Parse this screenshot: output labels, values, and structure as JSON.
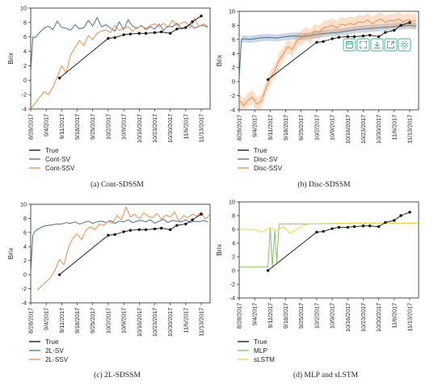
{
  "colors": {
    "true": "#111111",
    "sv": "#4a6f94",
    "ssv": "#ed8b47",
    "mlp": "#86c06a",
    "slstm": "#f5d24a",
    "toolbar": "#3fae8a"
  },
  "toolbar": {
    "icons": [
      "save-icon",
      "expand-icon",
      "download-icon",
      "export-icon",
      "settings-icon"
    ]
  },
  "chart_data": [
    {
      "type": "line",
      "caption": "(a) Cont-SDSSM",
      "ylabel": "Brix",
      "ylim": [
        -4,
        10
      ],
      "yticks": [
        -4,
        -2,
        0,
        2,
        4,
        6,
        8,
        10
      ],
      "x_ticks": [
        "8/28/2017",
        "9/4/2017",
        "9/11/2017",
        "9/18/2017",
        "9/25/2017",
        "10/2/2017",
        "10/9/2017",
        "10/16/2017",
        "10/23/2017",
        "10/30/2017",
        "11/6/2017",
        "11/13/2017"
      ],
      "x_range": [
        "8/28/2017",
        "11/17/2017"
      ],
      "series": [
        {
          "name": "True",
          "style": "marker",
          "x": [
            "9/10/2017",
            "10/2/2017",
            "10/5/2017",
            "10/9/2017",
            "10/12/2017",
            "10/16/2017",
            "10/19/2017",
            "10/23/2017",
            "10/26/2017",
            "10/30/2017",
            "11/2/2017",
            "11/6/2017",
            "11/9/2017",
            "11/13/2017"
          ],
          "y": [
            0.3,
            5.8,
            5.9,
            6.3,
            6.4,
            6.5,
            6.5,
            6.6,
            6.7,
            6.5,
            7.1,
            7.3,
            8.1,
            8.9
          ]
        },
        {
          "name": "Cont-SV",
          "style": "line",
          "x": [
            "8/28/2017",
            "8/29/2017",
            "8/30/2017",
            "9/1/2017",
            "9/3/2017",
            "9/5/2017",
            "9/7/2017",
            "9/9/2017",
            "9/11/2017",
            "9/13/2017",
            "9/15/2017",
            "9/17/2017",
            "9/19/2017",
            "9/21/2017",
            "9/23/2017",
            "9/25/2017",
            "9/27/2017",
            "9/29/2017",
            "10/1/2017",
            "10/3/2017",
            "10/5/2017",
            "10/7/2017",
            "10/9/2017",
            "10/11/2017",
            "10/13/2017",
            "10/15/2017",
            "10/17/2017",
            "10/19/2017",
            "10/21/2017",
            "10/23/2017",
            "10/25/2017",
            "10/27/2017",
            "10/29/2017",
            "10/31/2017",
            "11/2/2017",
            "11/4/2017",
            "11/6/2017",
            "11/8/2017",
            "11/10/2017",
            "11/12/2017",
            "11/14/2017",
            "11/16/2017"
          ],
          "y": [
            1.2,
            6.0,
            5.9,
            6.6,
            7.2,
            7.5,
            7.0,
            8.2,
            7.3,
            7.2,
            6.9,
            7.7,
            7.1,
            7.3,
            8.3,
            7.5,
            8.7,
            7.4,
            7.7,
            7.2,
            6.8,
            8.1,
            7.0,
            8.4,
            7.5,
            7.2,
            7.6,
            7.0,
            7.4,
            7.1,
            7.8,
            6.9,
            7.5,
            7.4,
            7.9,
            7.1,
            7.3,
            7.7,
            7.2,
            7.5,
            7.6,
            7.3
          ]
        },
        {
          "name": "Cont-SSV",
          "style": "line",
          "x": [
            "8/28/2017",
            "8/30/2017",
            "9/1/2017",
            "9/3/2017",
            "9/5/2017",
            "9/7/2017",
            "9/9/2017",
            "9/11/2017",
            "9/13/2017",
            "9/15/2017",
            "9/17/2017",
            "9/19/2017",
            "9/21/2017",
            "9/23/2017",
            "9/25/2017",
            "9/27/2017",
            "9/29/2017",
            "10/1/2017",
            "10/3/2017",
            "10/5/2017",
            "10/7/2017",
            "10/9/2017",
            "10/11/2017",
            "10/13/2017",
            "10/15/2017",
            "10/17/2017",
            "10/19/2017",
            "10/21/2017",
            "10/23/2017",
            "10/25/2017",
            "10/27/2017",
            "10/29/2017",
            "10/31/2017",
            "11/2/2017",
            "11/4/2017",
            "11/6/2017",
            "11/8/2017",
            "11/10/2017",
            "11/12/2017",
            "11/14/2017",
            "11/16/2017"
          ],
          "y": [
            -4.0,
            -3.2,
            -2.4,
            -1.6,
            -2.0,
            -1.0,
            0.5,
            2.0,
            1.0,
            3.5,
            4.5,
            5.5,
            4.8,
            6.2,
            5.6,
            6.5,
            6.8,
            7.0,
            6.6,
            7.6,
            6.9,
            7.2,
            7.4,
            6.8,
            7.3,
            7.5,
            7.2,
            7.6,
            7.8,
            7.4,
            7.9,
            7.3,
            8.3,
            7.6,
            7.9,
            8.1,
            7.2,
            8.6,
            7.4,
            7.8,
            7.5
          ]
        }
      ],
      "legend": {
        "placement": "below",
        "entries": [
          "True",
          "Cont-SV",
          "Cont-SSV"
        ]
      },
      "grid": false
    },
    {
      "type": "line",
      "caption": "(b) Disc-SDSSM",
      "ylabel": "Brix",
      "ylim": [
        -4,
        10
      ],
      "yticks": [
        -4,
        -2,
        0,
        2,
        4,
        6,
        8,
        10
      ],
      "x_ticks": [
        "8/28/2017",
        "9/4/2017",
        "9/11/2017",
        "9/18/2017",
        "9/25/2017",
        "10/2/2017",
        "10/9/2017",
        "10/16/2017",
        "10/23/2017",
        "10/30/2017",
        "11/6/2017",
        "11/13/2017"
      ],
      "x_range": [
        "8/28/2017",
        "11/17/2017"
      ],
      "series": [
        {
          "name": "True",
          "style": "marker",
          "x": [
            "9/10/2017",
            "10/2/2017",
            "10/5/2017",
            "10/9/2017",
            "10/12/2017",
            "10/16/2017",
            "10/19/2017",
            "10/23/2017",
            "10/26/2017",
            "10/30/2017",
            "11/2/2017",
            "11/6/2017",
            "11/9/2017",
            "11/13/2017"
          ],
          "y": [
            0.3,
            5.6,
            5.7,
            6.1,
            6.3,
            6.4,
            6.4,
            6.5,
            6.6,
            6.4,
            7.0,
            7.3,
            8.0,
            8.4
          ]
        },
        {
          "name": "Disc-SV",
          "style": "band",
          "x": [
            "8/28/2017",
            "8/29/2017",
            "8/30/2017",
            "9/2/2017",
            "9/6/2017",
            "9/10/2017",
            "9/14/2017",
            "9/18/2017",
            "9/22/2017",
            "9/26/2017",
            "9/30/2017",
            "10/4/2017",
            "10/8/2017",
            "10/12/2017",
            "10/16/2017",
            "10/20/2017",
            "10/24/2017",
            "10/28/2017",
            "11/1/2017",
            "11/5/2017",
            "11/9/2017",
            "11/13/2017",
            "11/16/2017"
          ],
          "y": [
            0.5,
            6.0,
            6.1,
            6.0,
            6.2,
            6.3,
            6.2,
            6.4,
            6.5,
            6.4,
            6.6,
            6.8,
            6.9,
            7.0,
            7.2,
            7.4,
            7.5,
            7.6,
            7.7,
            7.8,
            7.9,
            8.0,
            7.9
          ],
          "spread": 0.5
        },
        {
          "name": "Disc-SSV",
          "style": "band",
          "x": [
            "8/28/2017",
            "8/30/2017",
            "9/1/2017",
            "9/3/2017",
            "9/5/2017",
            "9/7/2017",
            "9/9/2017",
            "9/11/2017",
            "9/13/2017",
            "9/15/2017",
            "9/17/2017",
            "9/19/2017",
            "9/21/2017",
            "9/23/2017",
            "9/25/2017",
            "9/27/2017",
            "9/29/2017",
            "10/1/2017",
            "10/3/2017",
            "10/5/2017",
            "10/7/2017",
            "10/9/2017",
            "10/11/2017",
            "10/13/2017",
            "10/15/2017",
            "10/17/2017",
            "10/19/2017",
            "10/21/2017",
            "10/23/2017",
            "10/25/2017",
            "10/27/2017",
            "10/29/2017",
            "10/31/2017",
            "11/2/2017",
            "11/4/2017",
            "11/6/2017",
            "11/8/2017",
            "11/10/2017",
            "11/12/2017",
            "11/14/2017",
            "11/16/2017"
          ],
          "y": [
            -2.6,
            -3.4,
            -2.6,
            -2.2,
            -3.2,
            -2.8,
            -1.0,
            0.5,
            1.5,
            3.0,
            4.0,
            5.0,
            4.6,
            5.8,
            6.2,
            6.8,
            6.4,
            7.2,
            7.0,
            7.6,
            7.8,
            8.0,
            7.6,
            8.2,
            8.0,
            8.3,
            8.1,
            8.5,
            8.4,
            8.8,
            8.2,
            8.6,
            8.9,
            8.4,
            8.7,
            8.6,
            8.9,
            8.5,
            8.8,
            8.6,
            8.7
          ],
          "spread": 1.0
        }
      ],
      "legend": {
        "placement": "below",
        "entries": [
          "True",
          "Disc-SV",
          "Disc-SSV"
        ]
      },
      "grid": false
    },
    {
      "type": "line",
      "caption": "(c) 2L-SDSSM",
      "ylabel": "Brix",
      "ylim": [
        -4,
        10
      ],
      "yticks": [
        -4,
        -2,
        0,
        2,
        4,
        6,
        8,
        10
      ],
      "x_ticks": [
        "8/28/2017",
        "9/4/2017",
        "9/11/2017",
        "9/18/2017",
        "9/25/2017",
        "10/2/2017",
        "10/9/2017",
        "10/16/2017",
        "10/23/2017",
        "10/30/2017",
        "11/6/2017",
        "11/13/2017"
      ],
      "x_range": [
        "8/28/2017",
        "11/17/2017"
      ],
      "series": [
        {
          "name": "True",
          "style": "marker",
          "x": [
            "9/10/2017",
            "10/2/2017",
            "10/5/2017",
            "10/9/2017",
            "10/12/2017",
            "10/16/2017",
            "10/19/2017",
            "10/23/2017",
            "10/26/2017",
            "10/30/2017",
            "11/2/2017",
            "11/6/2017",
            "11/9/2017",
            "11/13/2017"
          ],
          "y": [
            0.0,
            5.6,
            5.7,
            6.1,
            6.3,
            6.4,
            6.4,
            6.5,
            6.6,
            6.4,
            7.0,
            7.2,
            7.8,
            8.6
          ]
        },
        {
          "name": "2L-SV",
          "style": "line",
          "x": [
            "8/28/2017",
            "8/29/2017",
            "8/30/2017",
            "9/1/2017",
            "9/3/2017",
            "9/5/2017",
            "9/7/2017",
            "9/9/2017",
            "9/11/2017",
            "9/13/2017",
            "9/15/2017",
            "9/17/2017",
            "9/19/2017",
            "9/21/2017",
            "9/23/2017",
            "9/25/2017",
            "9/27/2017",
            "9/29/2017",
            "10/1/2017",
            "10/3/2017",
            "10/5/2017",
            "10/7/2017",
            "10/9/2017",
            "10/11/2017",
            "10/13/2017",
            "10/15/2017",
            "10/17/2017",
            "10/19/2017",
            "10/21/2017",
            "10/23/2017",
            "10/25/2017",
            "10/27/2017",
            "10/29/2017",
            "10/31/2017",
            "11/2/2017",
            "11/4/2017",
            "11/6/2017",
            "11/8/2017",
            "11/10/2017",
            "11/12/2017",
            "11/14/2017",
            "11/16/2017"
          ],
          "y": [
            0.4,
            5.6,
            6.2,
            6.6,
            6.9,
            7.0,
            7.1,
            7.2,
            7.2,
            7.4,
            7.3,
            7.5,
            7.2,
            7.4,
            7.6,
            7.3,
            7.5,
            7.6,
            7.4,
            7.7,
            7.3,
            7.6,
            7.5,
            7.8,
            7.4,
            7.6,
            7.7,
            7.5,
            7.8,
            7.3,
            7.6,
            7.9,
            7.4,
            7.7,
            7.6,
            7.5,
            7.8,
            7.4,
            7.6,
            7.5,
            7.7,
            7.5
          ]
        },
        {
          "name": "2L-SSV",
          "style": "line",
          "x": [
            "8/31/2017",
            "9/2/2017",
            "9/4/2017",
            "9/6/2017",
            "9/8/2017",
            "9/10/2017",
            "9/12/2017",
            "9/14/2017",
            "9/16/2017",
            "9/18/2017",
            "9/20/2017",
            "9/22/2017",
            "9/24/2017",
            "9/26/2017",
            "9/28/2017",
            "9/30/2017",
            "10/2/2017",
            "10/4/2017",
            "10/6/2017",
            "10/8/2017",
            "10/10/2017",
            "10/12/2017",
            "10/14/2017",
            "10/16/2017",
            "10/18/2017",
            "10/20/2017",
            "10/22/2017",
            "10/24/2017",
            "10/26/2017",
            "10/28/2017",
            "10/30/2017",
            "11/1/2017",
            "11/3/2017",
            "11/5/2017",
            "11/7/2017",
            "11/9/2017",
            "11/11/2017",
            "11/13/2017",
            "11/15/2017",
            "11/17/2017"
          ],
          "y": [
            -2.2,
            -1.6,
            -1.0,
            -0.4,
            0.6,
            2.2,
            1.4,
            3.8,
            5.2,
            5.8,
            5.0,
            6.3,
            6.8,
            6.4,
            7.2,
            7.0,
            7.6,
            7.3,
            8.4,
            7.8,
            9.6,
            8.2,
            8.6,
            7.9,
            8.8,
            8.3,
            8.1,
            8.7,
            7.9,
            8.5,
            8.2,
            8.9,
            7.6,
            8.4,
            8.1,
            8.6,
            8.3,
            8.9,
            7.9,
            8.6
          ]
        }
      ],
      "legend": {
        "placement": "below",
        "entries": [
          "True",
          "2L-SV",
          "2L-SSV"
        ]
      },
      "grid": false
    },
    {
      "type": "line",
      "caption": "(d) MLP and sLSTM",
      "ylabel": "Brix",
      "ylim": [
        -4,
        10
      ],
      "yticks": [
        -4,
        -2,
        0,
        2,
        4,
        6,
        8,
        10
      ],
      "x_ticks": [
        "8/28/2017",
        "9/4/2017",
        "9/11/2017",
        "9/18/2017",
        "9/25/2017",
        "10/2/2017",
        "10/9/2017",
        "10/16/2017",
        "10/23/2017",
        "10/30/2017",
        "11/6/2017",
        "11/13/2017"
      ],
      "x_range": [
        "8/28/2017",
        "11/17/2017"
      ],
      "series": [
        {
          "name": "True",
          "style": "marker",
          "x": [
            "9/10/2017",
            "10/2/2017",
            "10/5/2017",
            "10/9/2017",
            "10/12/2017",
            "10/16/2017",
            "10/19/2017",
            "10/23/2017",
            "10/26/2017",
            "10/30/2017",
            "11/2/2017",
            "11/6/2017",
            "11/9/2017",
            "11/13/2017"
          ],
          "y": [
            0.0,
            5.6,
            5.7,
            6.1,
            6.3,
            6.3,
            6.4,
            6.5,
            6.5,
            6.4,
            7.0,
            7.3,
            8.0,
            8.5
          ]
        },
        {
          "name": "MLP",
          "style": "line",
          "x": [
            "8/28/2017",
            "9/10/2017",
            "9/11/2017",
            "9/12/2017",
            "9/13/2017",
            "9/14/2017",
            "9/15/2017",
            "9/17/2017",
            "10/2/2017",
            "10/16/2017",
            "10/30/2017",
            "11/13/2017",
            "11/17/2017"
          ],
          "y": [
            0.5,
            0.5,
            6.2,
            0.5,
            5.8,
            1.2,
            6.8,
            6.8,
            6.8,
            6.9,
            6.9,
            6.9,
            6.9
          ]
        },
        {
          "name": "sLSTM",
          "style": "line",
          "x": [
            "8/28/2017",
            "9/4/2017",
            "9/7/2017",
            "9/11/2017",
            "9/14/2017",
            "9/17/2017",
            "9/20/2017",
            "9/23/2017",
            "9/26/2017",
            "9/29/2017",
            "10/2/2017",
            "10/9/2017",
            "10/16/2017",
            "10/23/2017",
            "10/30/2017",
            "11/6/2017",
            "11/13/2017",
            "11/17/2017"
          ],
          "y": [
            6.0,
            6.0,
            5.6,
            6.2,
            5.8,
            6.4,
            5.4,
            6.0,
            6.6,
            6.8,
            6.8,
            6.8,
            6.9,
            6.9,
            6.9,
            6.9,
            6.9,
            6.9
          ]
        }
      ],
      "legend": {
        "placement": "below",
        "entries": [
          "True",
          "MLP",
          "sLSTM"
        ]
      },
      "grid": false
    }
  ]
}
